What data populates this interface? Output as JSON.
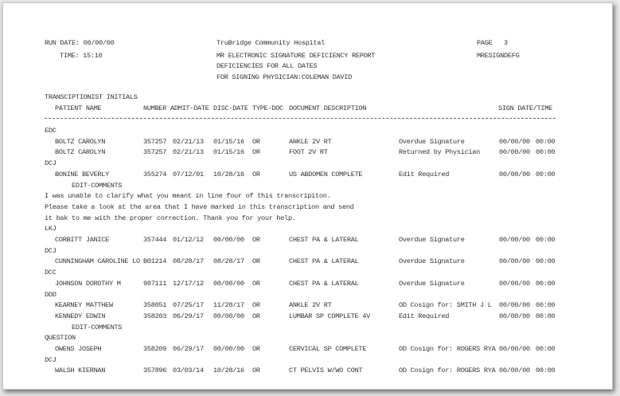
{
  "header": {
    "run_date": "RUN DATE: 00/00/00",
    "time": "TIME: 15:10",
    "hospital": "TruBridge Community Hospital",
    "report_title": "MR ELECTRONIC SIGNATURE DEFICIENCY REPORT",
    "subtitle": "DEFICIENCIES FOR ALL DATES",
    "physician": "FOR SIGNING PHYSICIAN:COLEMAN DAVID",
    "page": "PAGE   3",
    "report_code": "MRESIGNDEFG"
  },
  "columns": {
    "group_label": "TRANSCIPTIONIST INITIALS",
    "patient_name": "PATIENT NAME",
    "number": "NUMBER",
    "admit_date": "ADMIT-DATE",
    "disc_date": "DISC-DATE",
    "type_doc": "TYPE-DOC",
    "description": "DOCUMENT DESCRIPTION",
    "sign": "SIGN DATE/TIME"
  },
  "lines": [
    {
      "kind": "group",
      "text": "EDC"
    },
    {
      "kind": "row",
      "name": "BOLTZ CAROLYN",
      "number": "357257",
      "admit": "02/21/13",
      "disc": "01/15/16",
      "type": "OR",
      "desc": "ANKLE 2V RT",
      "status": "Overdue Signature",
      "sign_date": "00/00/00",
      "sign_time": "00:00"
    },
    {
      "kind": "row",
      "name": "BOLTZ CAROLYN",
      "number": "357257",
      "admit": "02/21/13",
      "disc": "01/15/16",
      "type": "OR",
      "desc": "FOOT 2V RT",
      "status": "Returned by Physician",
      "sign_date": "00/00/00",
      "sign_time": "00:00"
    },
    {
      "kind": "group",
      "text": "DCJ"
    },
    {
      "kind": "row",
      "name": "BONINE BEVERLY",
      "number": "355274",
      "admit": "07/12/01",
      "disc": "10/28/16",
      "type": "OR",
      "desc": "US ABDOMEN COMPLETE",
      "status": "Edit Required",
      "sign_date": "00/00/00",
      "sign_time": "00:00"
    },
    {
      "kind": "edit",
      "text": "EDIT-COMMENTS"
    },
    {
      "kind": "comment",
      "text": "I was unable to clarify what you meant in line four of this transcripiton."
    },
    {
      "kind": "comment",
      "text": "Please take a look at the area that I have marked in this transcription and send"
    },
    {
      "kind": "comment",
      "text": "it bak to me with the proper correction. Thank you for your help."
    },
    {
      "kind": "group",
      "text": "LKJ"
    },
    {
      "kind": "row",
      "name": "CORBITT JANICE",
      "number": "357444",
      "admit": "01/12/12",
      "disc": "00/00/00",
      "type": "OR",
      "desc": "CHEST PA & LATERAL",
      "status": "Overdue Signature",
      "sign_date": "00/00/00",
      "sign_time": "00:00"
    },
    {
      "kind": "group",
      "text": "DCJ"
    },
    {
      "kind": "row",
      "name": "CUNNINGHAM CAROLINE LO",
      "number": "B01214",
      "admit": "08/28/17",
      "disc": "08/28/17",
      "type": "OR",
      "desc": "CHEST PA & LATERAL",
      "status": "Overdue Signature",
      "sign_date": "00/00/00",
      "sign_time": "00:00"
    },
    {
      "kind": "group",
      "text": "DCC"
    },
    {
      "kind": "row",
      "name": "JOHNSON DOROTHY M",
      "number": "987111",
      "admit": "12/17/12",
      "disc": "00/00/00",
      "type": "OR",
      "desc": "CHEST PA & LATERAL",
      "status": "Overdue Signature",
      "sign_date": "00/00/00",
      "sign_time": "00:00"
    },
    {
      "kind": "group",
      "text": "DDD"
    },
    {
      "kind": "row",
      "name": "KEARNEY MATTHEW",
      "number": "358051",
      "admit": "07/25/17",
      "disc": "11/28/17",
      "type": "OR",
      "desc": "ANKLE 2V RT",
      "status": "OD Cosign for: SMITH J L",
      "sign_date": "00/00/00",
      "sign_time": "00:00"
    },
    {
      "kind": "row",
      "name": "KENNEDY EDWIN",
      "number": "358203",
      "admit": "06/29/17",
      "disc": "00/00/00",
      "type": "OR",
      "desc": "LUMBAR SP COMPLETE 4V",
      "status": "Edit Required",
      "sign_date": "00/00/00",
      "sign_time": "00:00"
    },
    {
      "kind": "edit",
      "text": "EDIT-COMMENTS"
    },
    {
      "kind": "group",
      "text": "QUESTION"
    },
    {
      "kind": "row",
      "name": "OWENS JOSEPH",
      "number": "358209",
      "admit": "06/29/17",
      "disc": "00/00/00",
      "type": "OR",
      "desc": "CERVICAL SP COMPLETE",
      "status": "OD Cosign for: ROGERS RYA",
      "sign_date": "00/00/00",
      "sign_time": "00:00"
    },
    {
      "kind": "group",
      "text": "DCJ"
    },
    {
      "kind": "row",
      "name": "WALSH KIERNAN",
      "number": "357896",
      "admit": "03/03/14",
      "disc": "10/28/16",
      "type": "OR",
      "desc": "CT PELVIS W/WO CONT",
      "status": "OD Cosign for: ROGERS RYA",
      "sign_date": "00/00/00",
      "sign_time": "00:00"
    }
  ]
}
